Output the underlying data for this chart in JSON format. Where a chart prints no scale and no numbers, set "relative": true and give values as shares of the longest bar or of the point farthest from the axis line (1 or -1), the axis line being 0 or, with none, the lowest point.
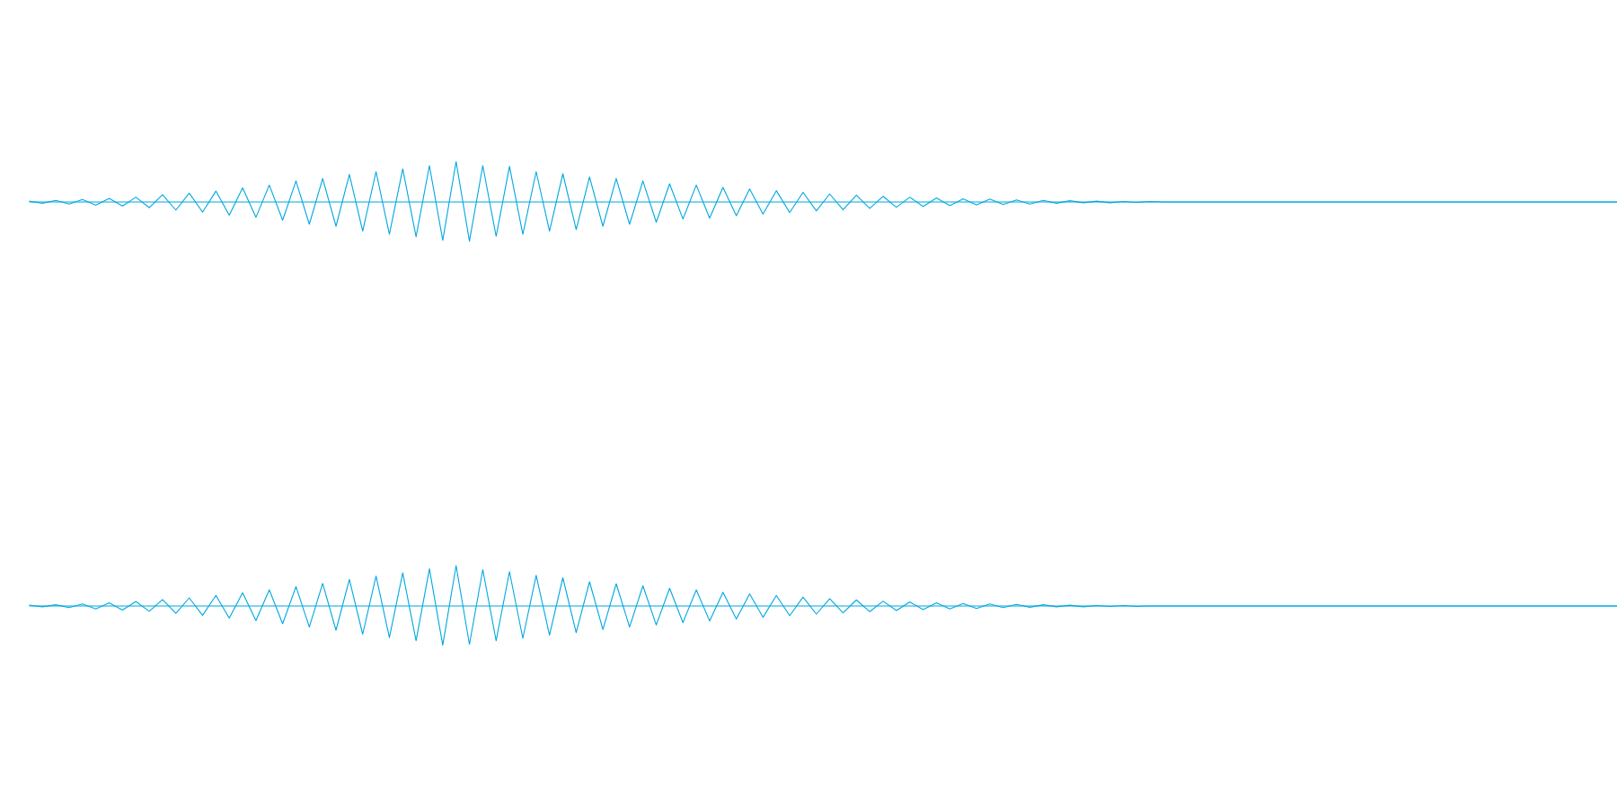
{
  "chart_data": [
    {
      "type": "line",
      "relative": true,
      "categories": [
        null,
        null,
        null,
        null,
        null,
        null,
        null,
        null,
        null,
        null,
        null,
        null,
        null,
        null,
        null,
        null,
        null,
        null,
        null,
        null,
        null,
        null,
        null,
        null,
        null,
        null,
        null,
        null,
        null,
        null,
        null,
        null,
        null,
        null,
        null,
        null,
        null,
        null,
        null,
        null,
        null,
        null,
        null,
        null,
        null,
        null,
        null,
        null,
        null,
        null,
        null,
        null,
        null,
        null,
        null,
        null,
        null,
        null,
        null,
        null,
        null,
        null,
        null,
        null,
        null,
        null,
        null,
        null,
        null,
        null,
        null,
        null,
        null,
        null,
        null,
        null,
        null,
        null,
        null,
        null,
        null,
        null,
        null,
        null,
        null,
        null,
        null,
        null,
        null,
        null,
        null,
        null,
        null,
        null,
        null,
        null,
        null,
        null,
        null,
        null,
        null,
        null,
        null,
        null,
        null,
        null,
        null,
        null,
        null,
        null,
        null,
        null,
        null,
        null,
        null,
        null,
        null,
        null,
        null,
        null
      ],
      "series": [
        {
          "color": "#00a8e0",
          "values": [
            0.02,
            -0.03,
            0.04,
            -0.05,
            0.06,
            -0.08,
            0.09,
            -0.1,
            0.12,
            -0.14,
            0.18,
            -0.2,
            0.22,
            -0.25,
            0.27,
            -0.33,
            0.35,
            -0.38,
            0.42,
            -0.45,
            0.52,
            -0.55,
            0.58,
            -0.6,
            0.68,
            -0.72,
            0.75,
            -0.8,
            0.82,
            -0.86,
            0.9,
            -0.95,
            1,
            -0.97,
            0.9,
            -0.85,
            0.88,
            -0.8,
            0.75,
            -0.72,
            0.7,
            -0.68,
            0.62,
            -0.6,
            0.58,
            -0.55,
            0.52,
            -0.5,
            0.45,
            -0.42,
            0.42,
            -0.4,
            0.36,
            -0.34,
            0.32,
            -0.3,
            0.28,
            -0.26,
            0.24,
            -0.22,
            0.2,
            -0.19,
            0.17,
            -0.16,
            0.14,
            -0.13,
            0.12,
            -0.11,
            0.1,
            -0.09,
            0.08,
            -0.07,
            0.07,
            -0.06,
            0.05,
            -0.05,
            0.04,
            -0.03,
            0.03,
            -0.02,
            0.02,
            -0.02,
            0.01,
            -0.01,
            0.01,
            0,
            0,
            0,
            0,
            0,
            0,
            0,
            0,
            0,
            0,
            0,
            0,
            0,
            0,
            0,
            0,
            0,
            0,
            0,
            0,
            0,
            0,
            0,
            0,
            0,
            0,
            0,
            0,
            0,
            0,
            0,
            0,
            0,
            0,
            0
          ]
        }
      ],
      "ref_lines": [
        {
          "axis": "y",
          "value": 0,
          "color": "#00a8e0"
        }
      ]
    },
    {
      "type": "line",
      "relative": true,
      "categories": [
        null,
        null,
        null,
        null,
        null,
        null,
        null,
        null,
        null,
        null,
        null,
        null,
        null,
        null,
        null,
        null,
        null,
        null,
        null,
        null,
        null,
        null,
        null,
        null,
        null,
        null,
        null,
        null,
        null,
        null,
        null,
        null,
        null,
        null,
        null,
        null,
        null,
        null,
        null,
        null,
        null,
        null,
        null,
        null,
        null,
        null,
        null,
        null,
        null,
        null,
        null,
        null,
        null,
        null,
        null,
        null,
        null,
        null,
        null,
        null,
        null,
        null,
        null,
        null,
        null,
        null,
        null,
        null,
        null,
        null,
        null,
        null,
        null,
        null,
        null,
        null,
        null,
        null,
        null,
        null,
        null,
        null,
        null,
        null,
        null,
        null,
        null,
        null,
        null,
        null,
        null,
        null,
        null,
        null,
        null,
        null,
        null,
        null,
        null,
        null,
        null,
        null,
        null,
        null,
        null,
        null,
        null,
        null,
        null,
        null,
        null,
        null,
        null,
        null,
        null,
        null,
        null,
        null,
        null,
        null
      ],
      "series": [
        {
          "color": "#00a8e0",
          "values": [
            0.02,
            -0.02,
            0.03,
            -0.04,
            0.05,
            -0.07,
            0.08,
            -0.1,
            0.11,
            -0.13,
            0.16,
            -0.18,
            0.2,
            -0.23,
            0.26,
            -0.3,
            0.33,
            -0.36,
            0.4,
            -0.44,
            0.48,
            -0.52,
            0.56,
            -0.6,
            0.66,
            -0.7,
            0.74,
            -0.78,
            0.82,
            -0.86,
            0.92,
            -0.97,
            1,
            -0.95,
            0.9,
            -0.86,
            0.85,
            -0.8,
            0.76,
            -0.72,
            0.7,
            -0.66,
            0.6,
            -0.58,
            0.55,
            -0.52,
            0.5,
            -0.47,
            0.44,
            -0.41,
            0.4,
            -0.37,
            0.34,
            -0.32,
            0.3,
            -0.28,
            0.26,
            -0.24,
            0.22,
            -0.2,
            0.18,
            -0.17,
            0.15,
            -0.14,
            0.12,
            -0.11,
            0.1,
            -0.09,
            0.08,
            -0.07,
            0.06,
            -0.06,
            0.05,
            -0.04,
            0.04,
            -0.03,
            0.03,
            -0.02,
            0.02,
            -0.02,
            0.01,
            -0.01,
            0.01,
            -0.01,
            0,
            0,
            0,
            0,
            0,
            0,
            0,
            0,
            0,
            0,
            0,
            0,
            0,
            0,
            0,
            0,
            0,
            0,
            0,
            0,
            0,
            0,
            0,
            0,
            0,
            0,
            0,
            0,
            0,
            0,
            0,
            0,
            0,
            0,
            0,
            0
          ]
        }
      ],
      "ref_lines": [
        {
          "axis": "y",
          "value": 0,
          "color": "#00a8e0"
        }
      ]
    }
  ]
}
